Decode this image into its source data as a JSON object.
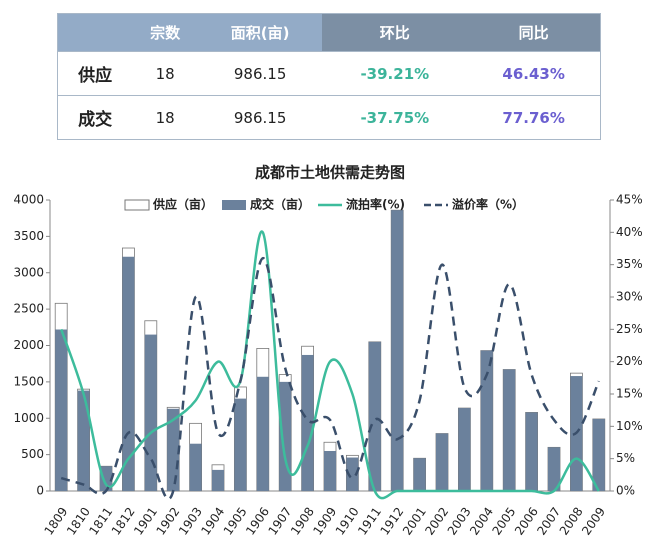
{
  "table": {
    "header": [
      "宗数",
      "面积(亩)",
      "环比",
      "同比"
    ],
    "rows": [
      {
        "label": "供应",
        "cells": [
          "18",
          "986.15",
          "-39.21%",
          "46.43%"
        ]
      },
      {
        "label": "成交",
        "cells": [
          "18",
          "986.15",
          "-37.75%",
          "77.76%"
        ]
      }
    ]
  },
  "chart_data": {
    "type": "bar",
    "title": "成都市土地供需走势图",
    "categories": [
      "1809",
      "1810",
      "1811",
      "1812",
      "1901",
      "1902",
      "1903",
      "1904",
      "1905",
      "1906",
      "1907",
      "1908",
      "1909",
      "1910",
      "1911",
      "1912",
      "2001",
      "2002",
      "2003",
      "2004",
      "2005",
      "2006",
      "2007",
      "2008",
      "2009"
    ],
    "series": [
      {
        "name": "供应（亩）",
        "type": "bar",
        "color": "#ffffff",
        "values": [
          2580,
          1400,
          340,
          3340,
          2340,
          1150,
          930,
          360,
          1430,
          1960,
          1600,
          1990,
          670,
          490,
          2050,
          3860,
          450,
          790,
          1140,
          1930,
          1670,
          1080,
          600,
          1620,
          990
        ]
      },
      {
        "name": "成交（亩）",
        "type": "bar",
        "color": "#6b819c",
        "values": [
          2220,
          1380,
          340,
          3220,
          2150,
          1130,
          650,
          290,
          1270,
          1570,
          1500,
          1870,
          550,
          460,
          2050,
          3860,
          450,
          790,
          1140,
          1930,
          1670,
          1080,
          600,
          1580,
          990
        ]
      },
      {
        "name": "流拍率(%)",
        "type": "line",
        "axis": "y2",
        "color": "#3dbc9c",
        "values": [
          25,
          15,
          1,
          5,
          9,
          11,
          14,
          20,
          17,
          40,
          5,
          7,
          20,
          15,
          0,
          0,
          0,
          0,
          0,
          0,
          0,
          0,
          0,
          5,
          0
        ]
      },
      {
        "name": "溢价率（%）",
        "type": "line",
        "axis": "y2",
        "dashed": true,
        "color": "#3a4f6b",
        "values": [
          2,
          1,
          0,
          9,
          5,
          0,
          30,
          9,
          17,
          36,
          19,
          11,
          11,
          2,
          11,
          8,
          14,
          35,
          16,
          18,
          32,
          18,
          11,
          9,
          17
        ]
      }
    ],
    "ylim": [
      0,
      4000
    ],
    "yticks": [
      0,
      500,
      1000,
      1500,
      2000,
      2500,
      3000,
      3500,
      4000
    ],
    "y2lim": [
      0,
      45
    ],
    "y2ticks": [
      {
        "value": 0,
        "label": "0%"
      },
      {
        "value": 5,
        "label": "5%"
      },
      {
        "value": 10,
        "label": "10%"
      },
      {
        "value": 15,
        "label": "15%"
      },
      {
        "value": 20,
        "label": "20%"
      },
      {
        "value": 25,
        "label": "25%"
      },
      {
        "value": 30,
        "label": "30%"
      },
      {
        "value": 35,
        "label": "35%"
      },
      {
        "value": 40,
        "label": "40%"
      },
      {
        "value": 45,
        "label": "45%"
      }
    ]
  }
}
